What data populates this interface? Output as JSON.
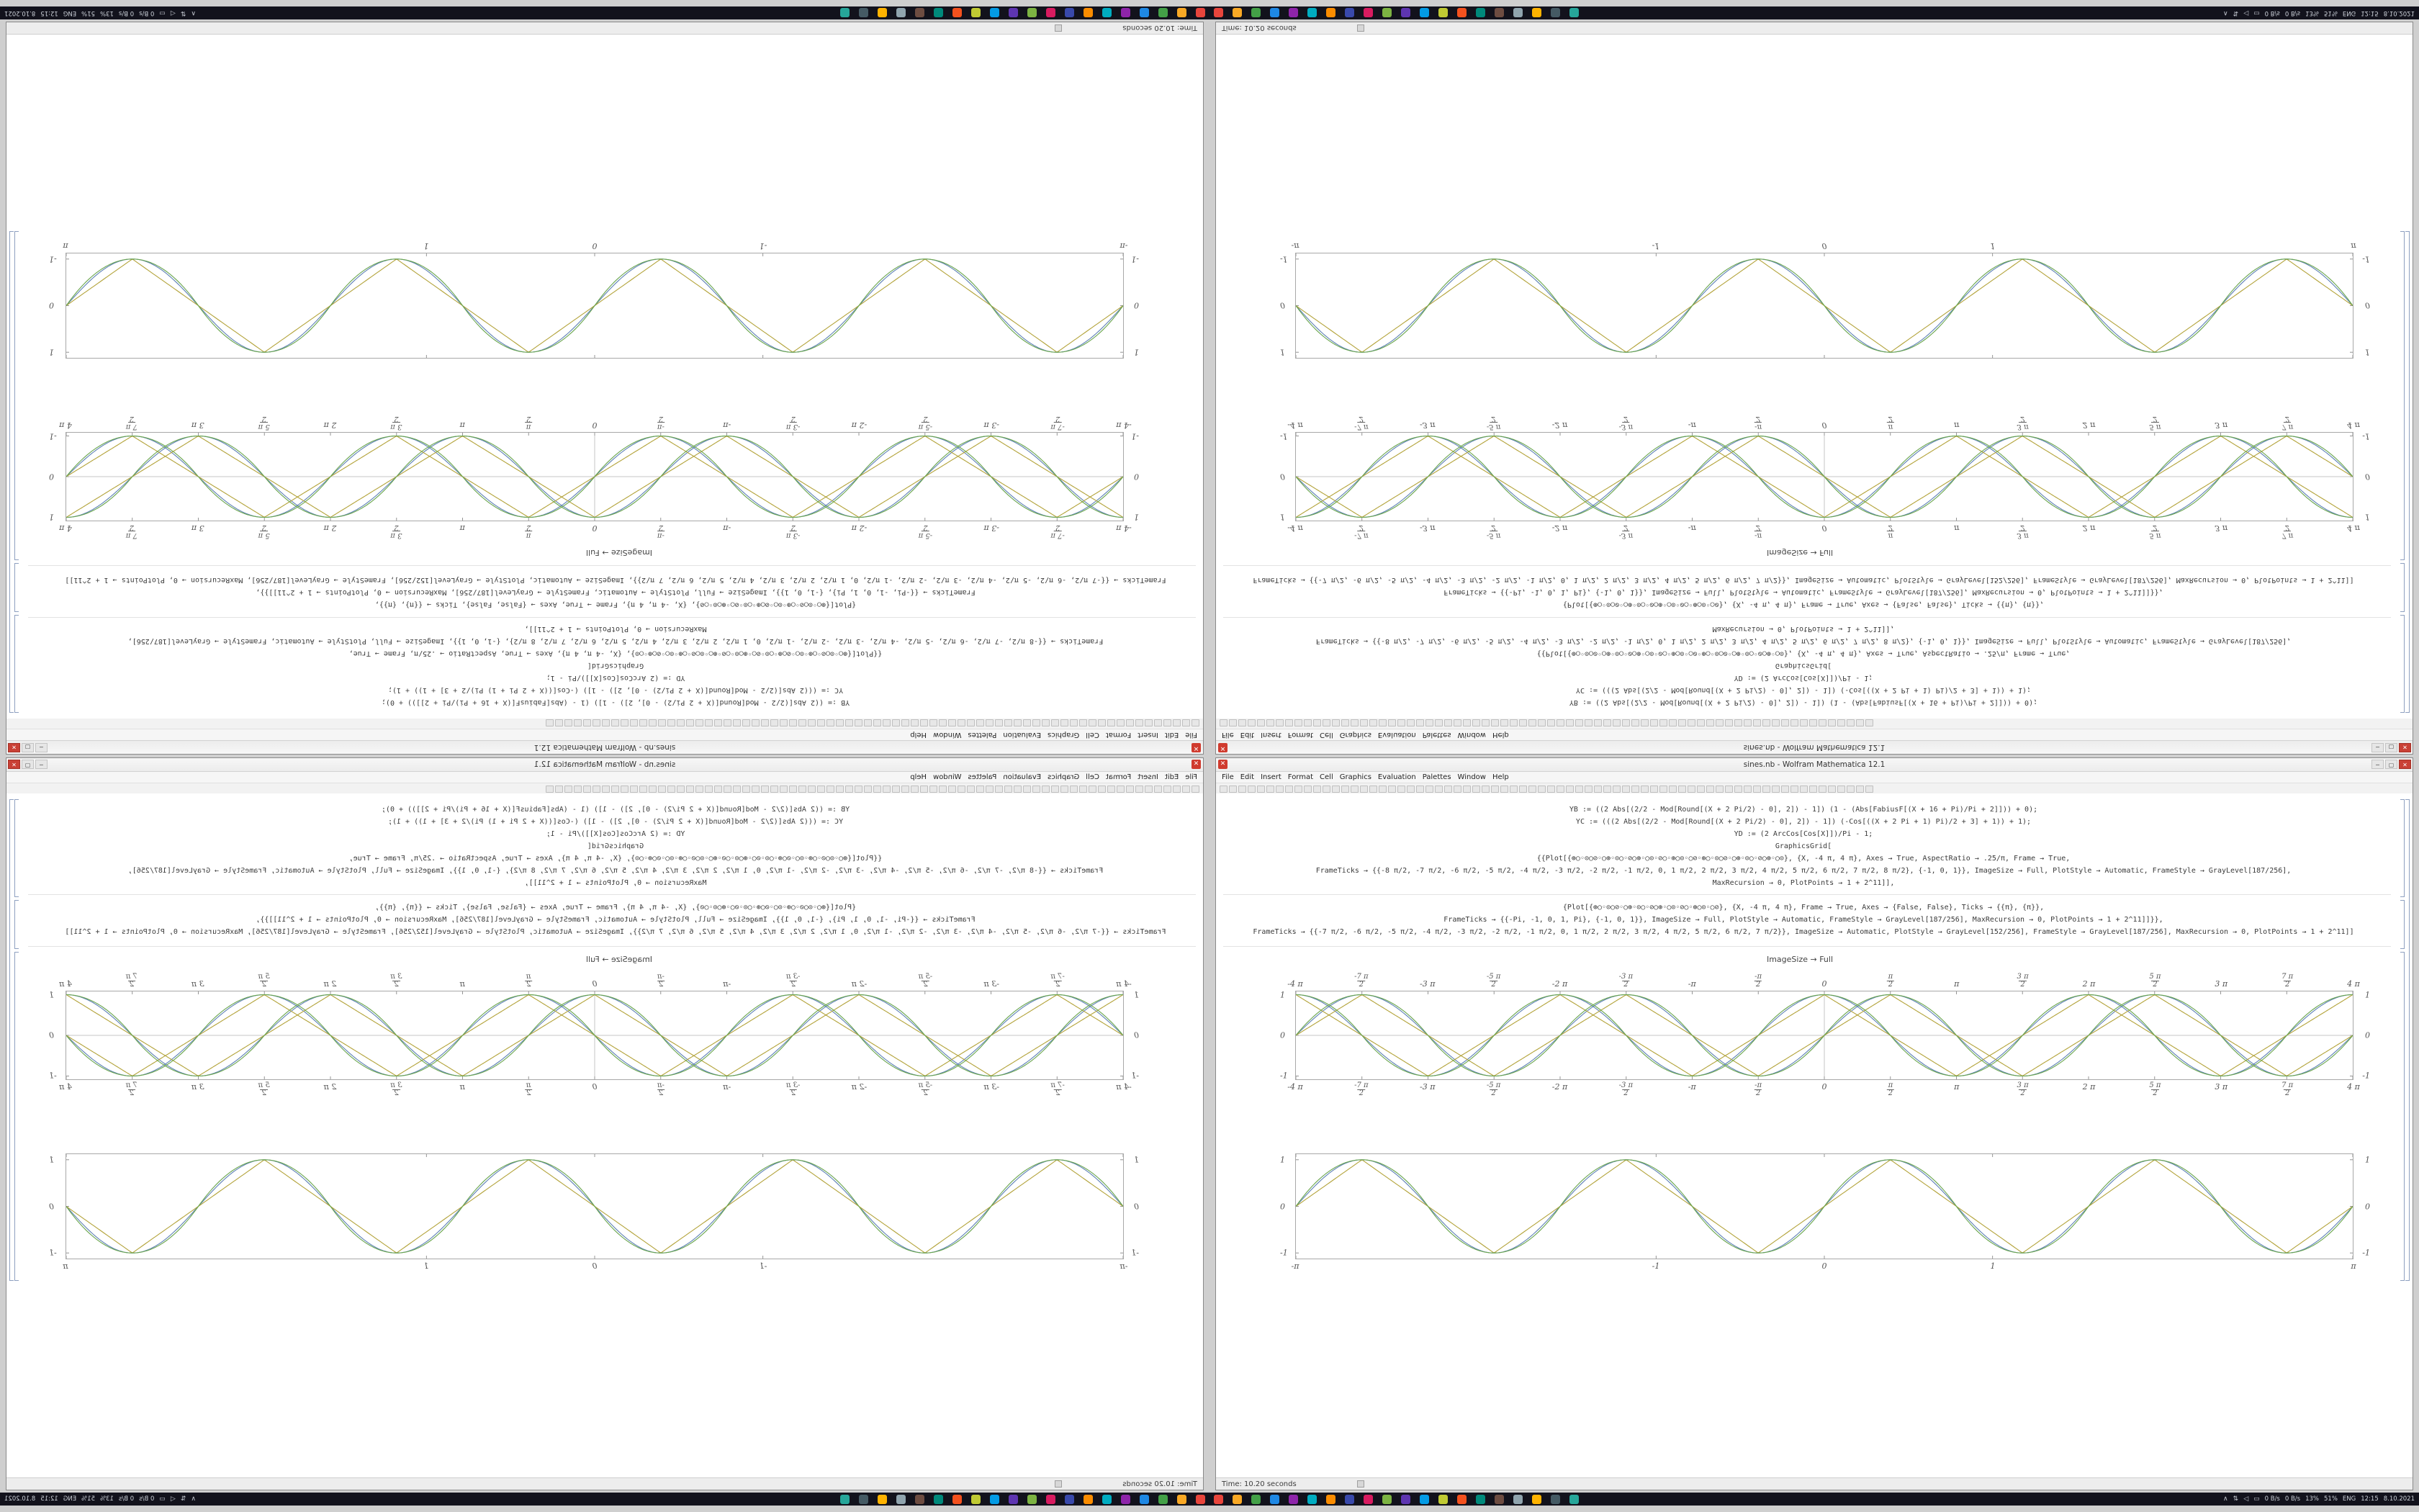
{
  "window": {
    "title": "sines.nb - Wolfram Mathematica 12.1",
    "close_glyph": "✕",
    "controls": {
      "minimize": "─",
      "maximize": "▢",
      "close": "✕"
    },
    "menu": [
      "File",
      "Edit",
      "Insert",
      "Format",
      "Cell",
      "Graphics",
      "Evaluation",
      "Palettes",
      "Window",
      "Help"
    ],
    "toolbar_button_count": 70,
    "status_time": "Time: 10.20 seconds"
  },
  "cells": {
    "cell1_lines": [
      "YB := ((2 Abs[(2/2 - Mod[Round[(X + 2 Pi/2) - 0], 2]) - 1]) (1 - (Abs[FabiusF[(X + 16 + Pi)/Pi + 2]])) + 0);",
      "YC := (((2 Abs[(2/2 - Mod[Round[(X + 2 Pi/2) - 0], 2]) - 1]) (-Cos[((X + 2 Pi + 1) Pi)/2 + 3] + 1)) + 1);",
      "YD := (2 ArcCos[Cos[X]])/Pi - 1;",
      "GraphicsGrid[",
      "{{Plot[{⊕○◦⊙○⊘◦○⊕◦⊙○◦⊘○⊕◦○⊙◦⊘○◦⊕○⊙◦○⊘◦⊕○◦⊙○⊘◦○⊕◦⊙○◦⊘○⊕◦○⊙}, {X, -4 π, 4 π}, Axes → True, AspectRatio → .25/π, Frame → True,",
      "FrameTicks → {{-8 π/2, -7 π/2, -6 π/2, -5 π/2, -4 π/2, -3 π/2, -2 π/2, -1 π/2, 0, 1 π/2, 2 π/2, 3 π/2, 4 π/2, 5 π/2, 6 π/2, 7 π/2, 8 π/2}, {-1, 0, 1}}, ImageSize → Full, PlotStyle → Automatic, FrameStyle → GrayLevel[187/256],",
      "MaxRecursion → 0, PlotPoints → 1 + 2^11]],"
    ],
    "cell2_lines": [
      "{Plot[{⊕○◦⊙○⊘◦○⊕◦⊙○◦⊘○⊕◦○⊙◦⊘○◦⊕○⊙◦○⊘}, {X, -4 π, 4 π}, Frame → True, Axes → {False, False}, Ticks → {{π}, {π}},",
      "FrameTicks → {{-Pi, -1, 0, 1, Pi}, {-1, 0, 1}}, ImageSize → Full, PlotStyle → Automatic, FrameStyle → GrayLevel[187/256], MaxRecursion → 0, PlotPoints → 1 + 2^11]]}},",
      "FrameTicks → {{-7 π/2, -6 π/2, -5 π/2, -4 π/2, -3 π/2, -2 π/2, -1 π/2, 0, 1 π/2, 2 π/2, 3 π/2, 4 π/2, 5 π/2, 6 π/2, 7 π/2}}, ImageSize → Automatic, PlotStyle → GrayLevel[152/256], FrameStyle → GrayLevel[187/256], MaxRecursion → 0, PlotPoints → 1 + 2^11]]"
    ],
    "output_label": "ImageSize → Full"
  },
  "chart_data": [
    {
      "type": "line",
      "title": "",
      "x_min": -12.566,
      "x_max": 12.566,
      "y_min": -1.08,
      "y_max": 1.08,
      "freq": 1,
      "axes": true,
      "x_ticks": [
        {
          "v": -12.566,
          "t": "-4 π"
        },
        {
          "v": -10.996,
          "n": "-7 π",
          "d": "2"
        },
        {
          "v": -9.425,
          "t": "-3 π"
        },
        {
          "v": -7.854,
          "n": "-5 π",
          "d": "2"
        },
        {
          "v": -6.283,
          "t": "-2 π"
        },
        {
          "v": -4.712,
          "n": "-3 π",
          "d": "2"
        },
        {
          "v": -3.1416,
          "t": "-π"
        },
        {
          "v": -1.5708,
          "n": "-π",
          "d": "2"
        },
        {
          "v": 0,
          "t": "0"
        },
        {
          "v": 1.5708,
          "n": "π",
          "d": "2"
        },
        {
          "v": 3.1416,
          "t": "π"
        },
        {
          "v": 4.712,
          "n": "3 π",
          "d": "2"
        },
        {
          "v": 6.283,
          "t": "2 π"
        },
        {
          "v": 7.854,
          "n": "5 π",
          "d": "2"
        },
        {
          "v": 9.425,
          "t": "3 π"
        },
        {
          "v": 10.996,
          "n": "7 π",
          "d": "2"
        },
        {
          "v": 12.566,
          "t": "4 π"
        }
      ],
      "y_ticks": [
        {
          "v": 1,
          "t": "1"
        },
        {
          "v": 0,
          "t": "0"
        },
        {
          "v": -1,
          "t": "-1"
        }
      ],
      "series": [
        {
          "name": "sin",
          "fn": "sin",
          "phase": 0,
          "color": "#5e81b5"
        },
        {
          "name": "cos",
          "fn": "sin",
          "phase": 1.5708,
          "color": "#5e81b5"
        },
        {
          "name": "tri-sin",
          "fn": "tri",
          "phase": 0,
          "color": "#b3a33a"
        },
        {
          "name": "tri-cos",
          "fn": "tri",
          "phase": 1.5708,
          "color": "#b3a33a"
        },
        {
          "name": "par-sin",
          "fn": "par",
          "phase": 0,
          "color": "#6aa64e"
        },
        {
          "name": "par-cos",
          "fn": "par",
          "phase": 1.5708,
          "color": "#6aa64e"
        }
      ]
    },
    {
      "type": "line",
      "title": "",
      "x_min": -3.1416,
      "x_max": 3.1416,
      "y_min": -1.12,
      "y_max": 1.12,
      "freq": 4,
      "axes": false,
      "x_ticks": [
        {
          "v": -3.1416,
          "t": "-π"
        },
        {
          "v": -1,
          "t": "-1"
        },
        {
          "v": 0,
          "t": "0"
        },
        {
          "v": 1,
          "t": "1"
        },
        {
          "v": 3.1416,
          "t": "π"
        }
      ],
      "y_ticks": [
        {
          "v": 1,
          "t": "1"
        },
        {
          "v": 0,
          "t": "0"
        },
        {
          "v": -1,
          "t": "-1"
        }
      ],
      "series": [
        {
          "name": "sin",
          "fn": "sin",
          "phase": 0,
          "color": "#5e81b5"
        },
        {
          "name": "tri-sin",
          "fn": "tri",
          "phase": 0,
          "color": "#b3a33a"
        },
        {
          "name": "par-sin",
          "fn": "par",
          "phase": 0,
          "color": "#6aa64e"
        }
      ]
    }
  ],
  "taskbar": {
    "app_colors": [
      "#e8453c",
      "#f9a825",
      "#43a047",
      "#1e88e5",
      "#8e24aa",
      "#00acc1",
      "#fb8c00",
      "#3949ab",
      "#d81b60",
      "#7cb342",
      "#5e35b1",
      "#039be5",
      "#c0ca33",
      "#f4511e",
      "#00897b",
      "#6d4c41",
      "#90a4ae",
      "#ffb300",
      "#455a64",
      "#26a69a"
    ],
    "tray_icons": [
      {
        "name": "chevron-up-icon",
        "glyph": "∧"
      },
      {
        "name": "network-icon",
        "glyph": "⇅"
      },
      {
        "name": "volume-icon",
        "glyph": "◁"
      },
      {
        "name": "battery-icon",
        "glyph": "▭"
      }
    ],
    "tray_texts": [
      "0 B/s",
      "0 B/s",
      "13%",
      "51%",
      "ENG",
      "12:15",
      "8.10.2021"
    ]
  }
}
